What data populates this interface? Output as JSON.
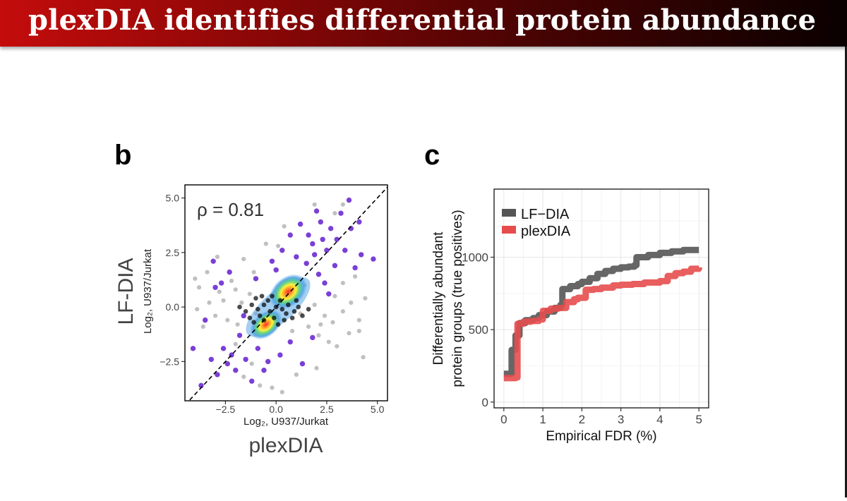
{
  "slide": {
    "title": "plexDIA identifies differential protein abundance"
  },
  "colors": {
    "title_bar_start": "#c40c0c",
    "title_bar_end": "#0a0000",
    "lf_dia": "#555555",
    "plexdia": "#e74c4c",
    "highlight_point": "#7a3fd6",
    "background_point": "#b9b9b9"
  },
  "chart_data": [
    {
      "panel_label": "b",
      "type": "scatter",
      "title": "",
      "annotation": "ρ = 0.81",
      "rho": 0.81,
      "xlabel": "plexDIA",
      "xlabel_sub": "Log₂, U937/Jurkat",
      "ylabel": "LF-DIA",
      "ylabel_sub": "Log₂, U937/Jurkat",
      "xlim": [
        -4.5,
        5.5
      ],
      "ylim": [
        -4.3,
        5.6
      ],
      "xticks": [
        -2.5,
        0.0,
        2.5,
        5.0
      ],
      "xtick_labels": [
        "−2.5",
        "0.0",
        "2.5",
        "5.0"
      ],
      "yticks": [
        -2.5,
        0.0,
        2.5,
        5.0
      ],
      "ytick_labels": [
        "−2.5",
        "0.0",
        "2.5",
        "5.0"
      ],
      "identity_line": true,
      "density_clusters": [
        {
          "x": 0.6,
          "y": 0.7,
          "label": "upper cluster"
        },
        {
          "x": -0.5,
          "y": -0.8,
          "label": "lower cluster"
        }
      ],
      "highlighted_points": [
        [
          3.6,
          4.9
        ],
        [
          3.2,
          4.3
        ],
        [
          2.0,
          4.4
        ],
        [
          2.7,
          3.6
        ],
        [
          2.2,
          3.9
        ],
        [
          4.2,
          2.4
        ],
        [
          4.8,
          2.2
        ],
        [
          1.2,
          3.8
        ],
        [
          0.7,
          3.3
        ],
        [
          1.8,
          2.9
        ],
        [
          2.5,
          2.6
        ],
        [
          3.0,
          3.1
        ],
        [
          1.5,
          2.0
        ],
        [
          2.1,
          1.5
        ],
        [
          0.3,
          2.6
        ],
        [
          -0.2,
          2.1
        ],
        [
          2.9,
          1.9
        ],
        [
          3.4,
          2.6
        ],
        [
          -3.1,
          2.1
        ],
        [
          -3.0,
          0.9
        ],
        [
          -2.3,
          1.6
        ],
        [
          1.0,
          2.3
        ],
        [
          2.4,
          1.1
        ],
        [
          3.7,
          3.6
        ],
        [
          -2.6,
          -1.9
        ],
        [
          -3.2,
          -2.4
        ],
        [
          -4.1,
          -1.9
        ],
        [
          -3.7,
          -3.6
        ],
        [
          -2.0,
          -2.9
        ],
        [
          -1.2,
          -3.4
        ],
        [
          -0.6,
          -2.9
        ],
        [
          -1.8,
          -1.3
        ],
        [
          -0.9,
          -1.9
        ],
        [
          1.3,
          -2.6
        ],
        [
          0.7,
          -1.6
        ],
        [
          1.8,
          -1.4
        ],
        [
          -1.5,
          -2.4
        ],
        [
          -2.9,
          -3.1
        ],
        [
          0.2,
          -2.2
        ],
        [
          -2.2,
          -2.2
        ],
        [
          4.1,
          3.9
        ],
        [
          3.9,
          1.8
        ],
        [
          1.6,
          3.3
        ],
        [
          2.6,
          0.6
        ],
        [
          -1.0,
          1.3
        ],
        [
          0.0,
          1.7
        ],
        [
          -3.5,
          -0.6
        ],
        [
          1.9,
          2.4
        ],
        [
          2.3,
          3.1
        ],
        [
          -2.7,
          1.1
        ],
        [
          -0.4,
          -2.5
        ],
        [
          -1.6,
          -0.4
        ],
        [
          -2.4,
          -2.6
        ]
      ],
      "background_points": [
        [
          -3.4,
          1.6
        ],
        [
          -3.8,
          0.9
        ],
        [
          -3.0,
          -0.4
        ],
        [
          -2.6,
          0.3
        ],
        [
          -3.6,
          -0.9
        ],
        [
          -2.2,
          1.2
        ],
        [
          -1.6,
          2.2
        ],
        [
          -1.1,
          1.6
        ],
        [
          -1.9,
          -0.8
        ],
        [
          -3.3,
          0.2
        ],
        [
          -2.8,
          0.7
        ],
        [
          -2.4,
          -0.6
        ],
        [
          -1.3,
          0.6
        ],
        [
          -1.7,
          0.2
        ],
        [
          -2.0,
          0.8
        ],
        [
          -1.0,
          -0.3
        ],
        [
          2.4,
          -0.4
        ],
        [
          2.8,
          -0.7
        ],
        [
          3.3,
          -0.2
        ],
        [
          3.7,
          0.2
        ],
        [
          4.1,
          -0.6
        ],
        [
          2.9,
          0.5
        ],
        [
          3.6,
          -1.2
        ],
        [
          1.6,
          -0.9
        ],
        [
          2.1,
          -1.3
        ],
        [
          4.4,
          0.4
        ],
        [
          1.2,
          -0.3
        ],
        [
          1.9,
          0.1
        ],
        [
          2.2,
          -0.8
        ],
        [
          2.6,
          -1.6
        ],
        [
          -0.8,
          -3.6
        ],
        [
          0.3,
          -3.9
        ],
        [
          -1.6,
          -3.2
        ],
        [
          1.0,
          -3.1
        ],
        [
          3.3,
          1.1
        ],
        [
          0.1,
          2.8
        ],
        [
          0.4,
          3.7
        ],
        [
          -0.5,
          2.9
        ],
        [
          1.9,
          4.7
        ],
        [
          2.9,
          4.3
        ],
        [
          3.3,
          4.7
        ],
        [
          -3.9,
          -0.1
        ],
        [
          -2.0,
          -1.7
        ],
        [
          1.4,
          1.0
        ],
        [
          3.0,
          -1.8
        ],
        [
          4.1,
          -1.1
        ],
        [
          -4.0,
          1.3
        ],
        [
          0.8,
          -1.1
        ],
        [
          3.9,
          1.4
        ],
        [
          -1.2,
          -2.6
        ],
        [
          4.3,
          -2.3
        ],
        [
          2.0,
          -2.8
        ],
        [
          -2.9,
          2.3
        ],
        [
          -0.2,
          -3.7
        ]
      ],
      "black_points": [
        [
          -0.9,
          -0.1
        ],
        [
          -0.6,
          0.1
        ],
        [
          -0.3,
          -0.2
        ],
        [
          0.0,
          0.0
        ],
        [
          0.3,
          -0.1
        ],
        [
          -0.8,
          -0.4
        ],
        [
          -1.2,
          0.1
        ],
        [
          -1.5,
          -0.2
        ],
        [
          0.5,
          -0.3
        ],
        [
          0.6,
          0.1
        ],
        [
          -0.4,
          0.3
        ],
        [
          -0.1,
          -0.5
        ],
        [
          0.9,
          -0.2
        ],
        [
          1.1,
          0.0
        ],
        [
          -1.0,
          0.4
        ],
        [
          0.2,
          0.3
        ],
        [
          -0.6,
          -0.6
        ],
        [
          0.8,
          -0.5
        ],
        [
          -1.3,
          -0.5
        ],
        [
          1.3,
          -0.4
        ],
        [
          -0.2,
          0.5
        ],
        [
          0.4,
          -0.6
        ],
        [
          -1.8,
          0.0
        ],
        [
          1.6,
          -0.1
        ],
        [
          -0.7,
          0.5
        ],
        [
          1.0,
          0.3
        ],
        [
          -1.1,
          -0.7
        ],
        [
          0.1,
          -0.8
        ]
      ]
    },
    {
      "panel_label": "c",
      "type": "line",
      "title": "",
      "xlabel": "Empirical FDR (%)",
      "ylabel": "Differentially abundant protein groups (true positives)",
      "ylabel_lines": [
        "Differentially abundant",
        "protein groups (true positives)"
      ],
      "xlim": [
        -0.25,
        5.25
      ],
      "ylim": [
        -40,
        1470
      ],
      "xticks": [
        0,
        1,
        2,
        3,
        4,
        5
      ],
      "xtick_labels": [
        "0",
        "1",
        "2",
        "3",
        "4",
        "5"
      ],
      "yticks": [
        0,
        500,
        1000
      ],
      "ytick_labels": [
        "0",
        "500",
        "1000"
      ],
      "grid": true,
      "legend_position": "top-left",
      "series": [
        {
          "name": "LF−DIA",
          "color": "#555555",
          "x": [
            0.0,
            0.15,
            0.2,
            0.3,
            0.4,
            0.55,
            0.75,
            0.9,
            1.0,
            1.1,
            1.3,
            1.45,
            1.5,
            1.7,
            1.9,
            2.0,
            2.2,
            2.4,
            2.6,
            2.8,
            3.0,
            3.2,
            3.35,
            3.4,
            3.7,
            4.0,
            4.3,
            4.6,
            5.0
          ],
          "y": [
            195,
            195,
            360,
            460,
            545,
            565,
            580,
            600,
            600,
            625,
            650,
            670,
            780,
            800,
            815,
            830,
            855,
            885,
            905,
            920,
            930,
            935,
            945,
            1000,
            1015,
            1030,
            1040,
            1050,
            1050
          ]
        },
        {
          "name": "plexDIA",
          "color": "#e74c4c",
          "x": [
            0.0,
            0.3,
            0.35,
            0.5,
            0.7,
            0.9,
            1.0,
            1.2,
            1.4,
            1.6,
            1.8,
            1.9,
            2.1,
            2.3,
            2.5,
            2.8,
            3.0,
            3.3,
            3.6,
            4.0,
            4.2,
            4.4,
            4.6,
            4.8,
            5.0
          ],
          "y": [
            165,
            170,
            540,
            555,
            560,
            570,
            630,
            645,
            650,
            690,
            710,
            720,
            775,
            780,
            790,
            805,
            810,
            815,
            825,
            835,
            870,
            890,
            900,
            920,
            930
          ]
        }
      ]
    }
  ]
}
